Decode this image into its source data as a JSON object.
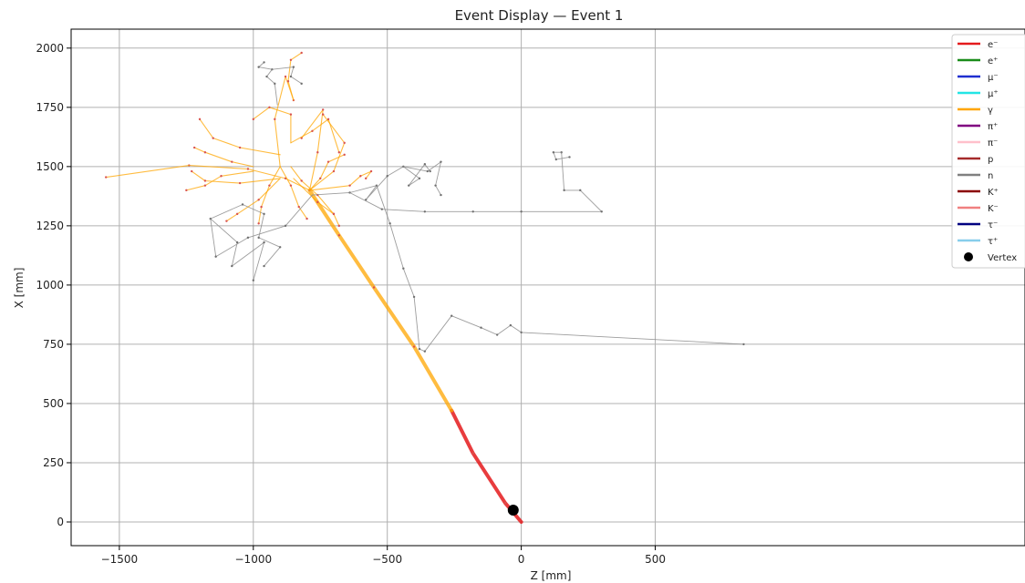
{
  "chart_data": {
    "type": "line",
    "title": "Event Display — Event 1",
    "xlabel": "Z [mm]",
    "ylabel": "X [mm]",
    "xlim": [
      -1680,
      1880
    ],
    "ylim": [
      -100,
      2080
    ],
    "xticks": [
      -1500,
      -1000,
      -500,
      0,
      500
    ],
    "xtick_labels": [
      "−1500",
      "−1000",
      "−500",
      "0",
      "500"
    ],
    "yticks": [
      0,
      250,
      500,
      750,
      1000,
      1250,
      1500,
      1750,
      2000
    ],
    "ytick_labels": [
      "0",
      "250",
      "500",
      "750",
      "1000",
      "1250",
      "1500",
      "1750",
      "2000"
    ],
    "grid": true,
    "legend_position": "top-right",
    "legend": [
      {
        "label": "e⁻",
        "color": "#e41a1c",
        "kind": "line"
      },
      {
        "label": "e⁺",
        "color": "#1a8c1a",
        "kind": "line"
      },
      {
        "label": "μ⁻",
        "color": "#1f2fd0",
        "kind": "line"
      },
      {
        "label": "μ⁺",
        "color": "#22e5e5",
        "kind": "line"
      },
      {
        "label": "γ",
        "color": "#ffa500",
        "kind": "line"
      },
      {
        "label": "π⁺",
        "color": "#800080",
        "kind": "line"
      },
      {
        "label": "π⁻",
        "color": "#ffc0cb",
        "kind": "line"
      },
      {
        "label": "p",
        "color": "#a52a2a",
        "kind": "line"
      },
      {
        "label": "n",
        "color": "#808080",
        "kind": "line"
      },
      {
        "label": "K⁺",
        "color": "#8b0000",
        "kind": "line"
      },
      {
        "label": "K⁻",
        "color": "#f08080",
        "kind": "line"
      },
      {
        "label": "τ⁻",
        "color": "#000080",
        "kind": "line"
      },
      {
        "label": "τ⁺",
        "color": "#87ceeb",
        "kind": "line"
      },
      {
        "label": "Vertex",
        "color": "#000000",
        "kind": "marker"
      }
    ],
    "vertex": {
      "z": -30,
      "x": 50
    },
    "series": [
      {
        "name": "e⁻",
        "color": "#e41a1c",
        "tracks": [
          {
            "z": [
              0,
              -60,
              -180,
              -260
            ],
            "x": [
              0,
              80,
              290,
              470
            ]
          }
        ]
      },
      {
        "name": "γ",
        "color": "#ffa500",
        "tracks": [
          {
            "z": [
              -260,
              -400,
              -550,
              -680,
              -790
            ],
            "x": [
              470,
              740,
              990,
              1210,
              1400
            ]
          },
          {
            "z": [
              -790,
              -880,
              -1020,
              -1240
            ],
            "x": [
              1400,
              1450,
              1490,
              1505
            ]
          },
          {
            "z": [
              -1240,
              -1550
            ],
            "x": [
              1505,
              1455
            ]
          },
          {
            "z": [
              -790,
              -760,
              -740,
              -820
            ],
            "x": [
              1400,
              1560,
              1740,
              1620
            ]
          },
          {
            "z": [
              -790,
              -700,
              -660,
              -740
            ],
            "x": [
              1400,
              1480,
              1600,
              1720
            ]
          },
          {
            "z": [
              -790,
              -750,
              -720,
              -660
            ],
            "x": [
              1400,
              1450,
              1520,
              1550
            ]
          },
          {
            "z": [
              -790,
              -640,
              -600,
              -560,
              -580
            ],
            "x": [
              1400,
              1420,
              1460,
              1480,
              1450
            ]
          },
          {
            "z": [
              -900,
              -920,
              -880,
              -850
            ],
            "x": [
              1500,
              1700,
              1880,
              1780
            ]
          },
          {
            "z": [
              -850,
              -870,
              -860,
              -820
            ],
            "x": [
              1780,
              1860,
              1950,
              1980
            ]
          },
          {
            "z": [
              -900,
              -1050,
              -1150,
              -1200
            ],
            "x": [
              1550,
              1580,
              1620,
              1700
            ]
          },
          {
            "z": [
              -900,
              -1050,
              -1180,
              -1230
            ],
            "x": [
              1450,
              1430,
              1440,
              1480
            ]
          },
          {
            "z": [
              -900,
              -980,
              -1060,
              -1100
            ],
            "x": [
              1450,
              1360,
              1300,
              1270
            ]
          },
          {
            "z": [
              -900,
              -940,
              -970,
              -980
            ],
            "x": [
              1500,
              1420,
              1330,
              1260
            ]
          },
          {
            "z": [
              -900,
              -860,
              -830,
              -800
            ],
            "x": [
              1500,
              1420,
              1330,
              1280
            ]
          },
          {
            "z": [
              -860,
              -820,
              -760,
              -700
            ],
            "x": [
              1500,
              1440,
              1380,
              1300
            ]
          },
          {
            "z": [
              -850,
              -760,
              -700,
              -680
            ],
            "x": [
              1450,
              1350,
              1300,
              1250
            ]
          },
          {
            "z": [
              -860,
              -860,
              -940,
              -1000
            ],
            "x": [
              1600,
              1720,
              1750,
              1700
            ]
          },
          {
            "z": [
              -860,
              -780,
              -720,
              -680
            ],
            "x": [
              1600,
              1650,
              1700,
              1560
            ]
          },
          {
            "z": [
              -1000,
              -1080,
              -1180,
              -1220
            ],
            "x": [
              1500,
              1520,
              1560,
              1580
            ]
          },
          {
            "z": [
              -1000,
              -1120,
              -1180,
              -1250
            ],
            "x": [
              1480,
              1460,
              1420,
              1400
            ]
          }
        ]
      },
      {
        "name": "n",
        "color": "#8c8c8c",
        "tracks": [
          {
            "z": [
              -780,
              -880,
              -1020,
              -1140,
              -1160,
              -1060,
              -1080,
              -960,
              -1000
            ],
            "x": [
              1380,
              1250,
              1200,
              1120,
              1280,
              1180,
              1080,
              1180,
              1020
            ]
          },
          {
            "z": [
              -1160,
              -1040,
              -960,
              -980,
              -900,
              -960
            ],
            "x": [
              1280,
              1340,
              1300,
              1200,
              1160,
              1080
            ]
          },
          {
            "z": [
              -780,
              -640,
              -540,
              -580,
              -500,
              -440,
              -380,
              -420,
              -360,
              -340
            ],
            "x": [
              1380,
              1390,
              1420,
              1360,
              1460,
              1500,
              1450,
              1420,
              1510,
              1480
            ]
          },
          {
            "z": [
              -440,
              -350,
              -300,
              -320,
              -300
            ],
            "x": [
              1500,
              1480,
              1520,
              1420,
              1380
            ]
          },
          {
            "z": [
              -640,
              -520,
              -360,
              -180,
              0,
              300,
              220,
              160,
              150
            ],
            "x": [
              1390,
              1320,
              1310,
              1310,
              1310,
              1310,
              1400,
              1400,
              1560
            ]
          },
          {
            "z": [
              150,
              120,
              130,
              180
            ],
            "x": [
              1560,
              1560,
              1530,
              1540
            ]
          },
          {
            "z": [
              -540,
              -490,
              -440,
              -400,
              -380,
              -360,
              -260,
              -150,
              -90,
              -40,
              0,
              830
            ],
            "x": [
              1420,
              1260,
              1070,
              950,
              730,
              720,
              870,
              820,
              790,
              830,
              800,
              750
            ]
          },
          {
            "z": [
              -910,
              -920,
              -950,
              -930,
              -980,
              -960
            ],
            "x": [
              1760,
              1850,
              1880,
              1910,
              1920,
              1940
            ]
          },
          {
            "z": [
              -930,
              -850,
              -860,
              -820
            ],
            "x": [
              1910,
              1920,
              1880,
              1850
            ]
          }
        ]
      }
    ]
  }
}
